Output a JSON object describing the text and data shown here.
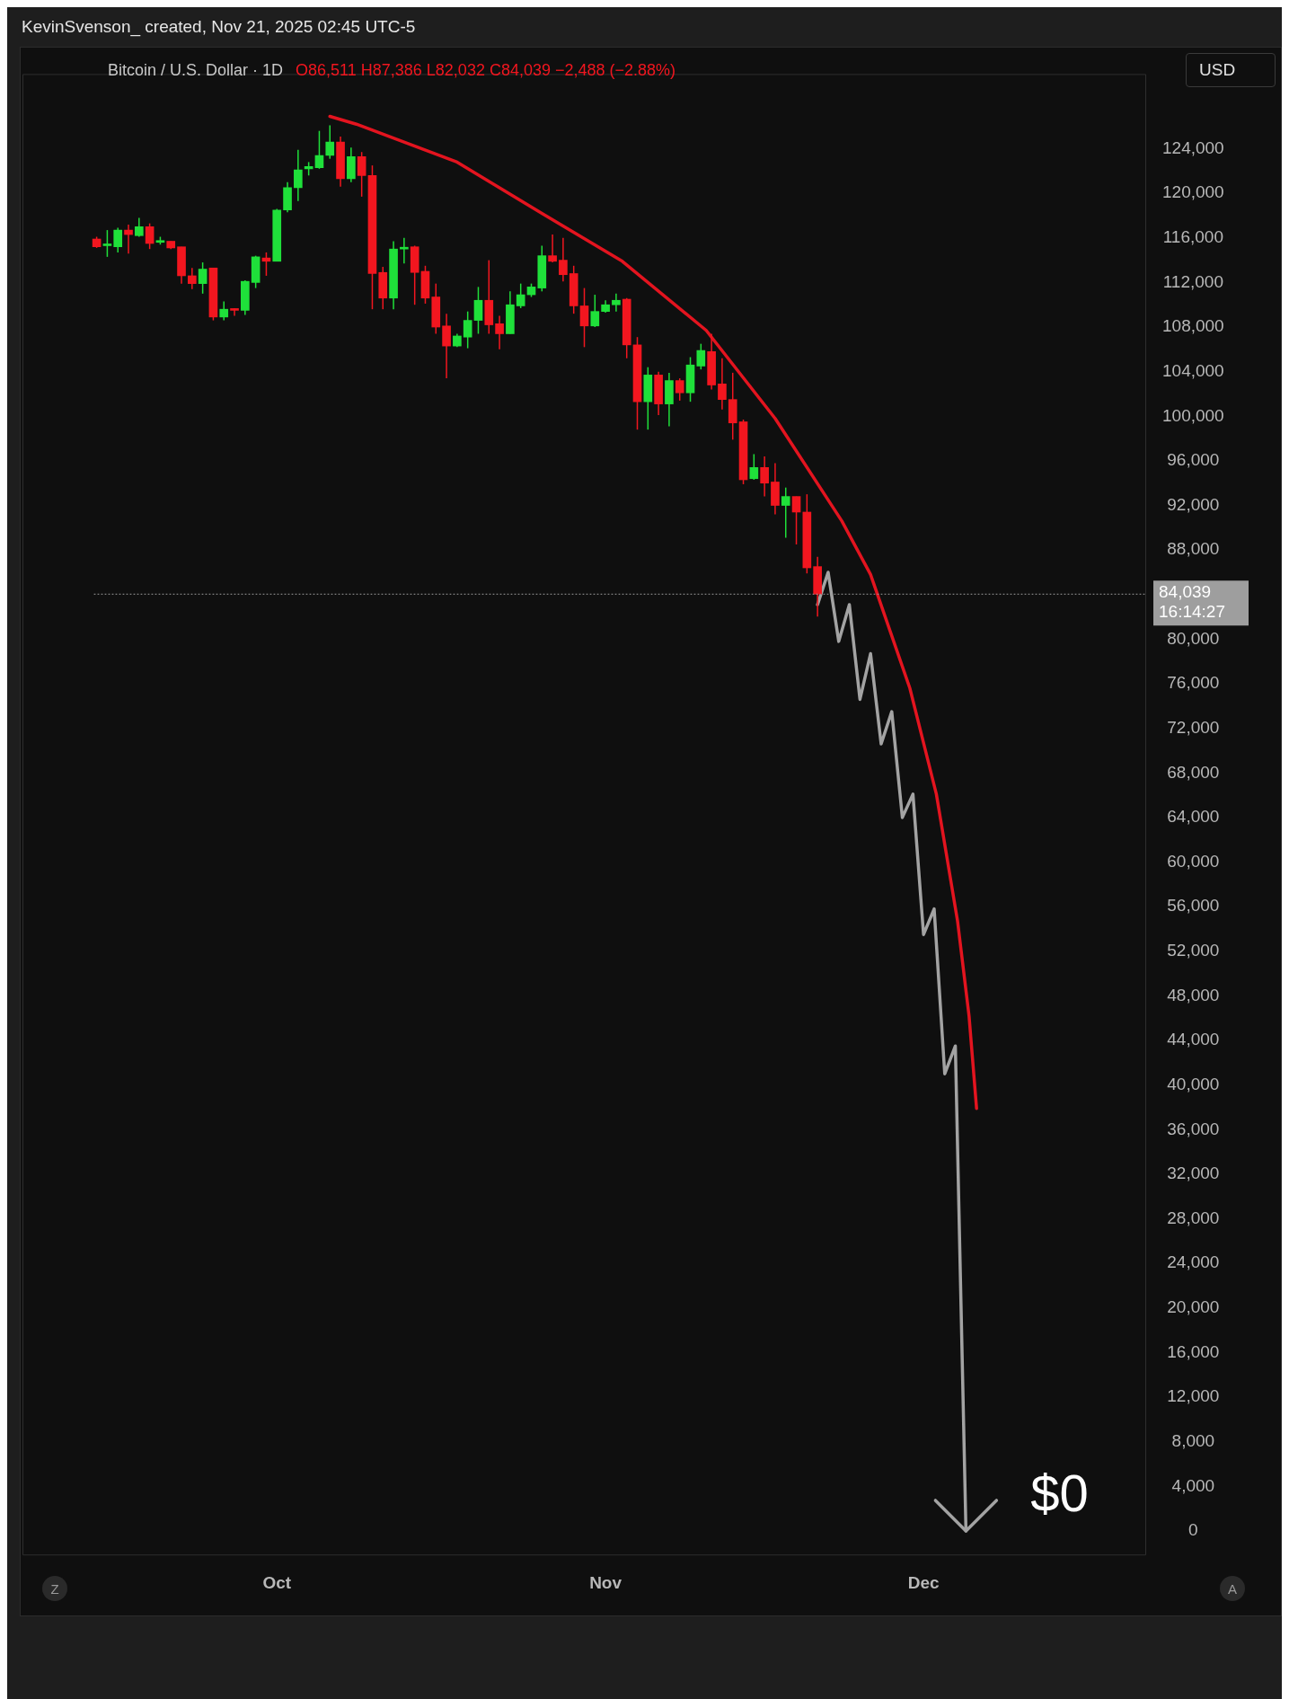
{
  "chart_data": {
    "type": "candlestick",
    "title": "Bitcoin / U.S. Dollar · 1D",
    "subtitle": "O86,511 H87,386 L82,032 C84,039 −2,488 (−2.88%)",
    "annotations": [
      "KevinSvenson_ created, Nov 21, 2025 02:45 UTC-5",
      "USD",
      "Z",
      "A",
      "$0"
    ],
    "x": [
      "2025-09-14",
      "2025-09-15",
      "2025-09-16",
      "2025-09-17",
      "2025-09-18",
      "2025-09-19",
      "2025-09-20",
      "2025-09-21",
      "2025-09-22",
      "2025-09-23",
      "2025-09-24",
      "2025-09-25",
      "2025-09-26",
      "2025-09-27",
      "2025-09-28",
      "2025-09-29",
      "2025-09-30",
      "2025-10-01",
      "2025-10-02",
      "2025-10-03",
      "2025-10-04",
      "2025-10-05",
      "2025-10-06",
      "2025-10-07",
      "2025-10-08",
      "2025-10-09",
      "2025-10-10",
      "2025-10-11",
      "2025-10-12",
      "2025-10-13",
      "2025-10-14",
      "2025-10-15",
      "2025-10-16",
      "2025-10-17",
      "2025-10-18",
      "2025-10-19",
      "2025-10-20",
      "2025-10-21",
      "2025-10-22",
      "2025-10-23",
      "2025-10-24",
      "2025-10-25",
      "2025-10-26",
      "2025-10-27",
      "2025-10-28",
      "2025-10-29",
      "2025-10-30",
      "2025-10-31",
      "2025-11-01",
      "2025-11-02",
      "2025-11-03",
      "2025-11-04",
      "2025-11-05",
      "2025-11-06",
      "2025-11-07",
      "2025-11-08",
      "2025-11-09",
      "2025-11-10",
      "2025-11-11",
      "2025-11-12",
      "2025-11-13",
      "2025-11-14",
      "2025-11-15",
      "2025-11-16",
      "2025-11-17",
      "2025-11-18",
      "2025-11-19",
      "2025-11-20",
      "2025-11-21"
    ],
    "ohlc": [
      [
        115900,
        116100,
        115100,
        115200
      ],
      [
        115300,
        116700,
        114300,
        115400
      ],
      [
        115200,
        116900,
        114700,
        116700
      ],
      [
        116700,
        117200,
        114600,
        116300
      ],
      [
        116200,
        117800,
        116100,
        117000
      ],
      [
        117000,
        117300,
        115000,
        115500
      ],
      [
        115600,
        116100,
        115400,
        115700
      ],
      [
        115700,
        115700,
        115000,
        115100
      ],
      [
        115200,
        115200,
        111900,
        112600
      ],
      [
        112600,
        113300,
        111400,
        111900
      ],
      [
        111900,
        113800,
        111000,
        113200
      ],
      [
        113300,
        113300,
        108600,
        108900
      ],
      [
        108900,
        110300,
        108600,
        109600
      ],
      [
        109600,
        109700,
        109000,
        109500
      ],
      [
        109500,
        112200,
        109100,
        112100
      ],
      [
        112000,
        114400,
        111500,
        114300
      ],
      [
        114200,
        114700,
        112600,
        113900
      ],
      [
        113900,
        118600,
        113900,
        118500
      ],
      [
        118500,
        121000,
        118300,
        120500
      ],
      [
        120500,
        123900,
        119300,
        122100
      ],
      [
        122200,
        122800,
        121600,
        122400
      ],
      [
        122300,
        125600,
        122200,
        123400
      ],
      [
        123400,
        126100,
        123100,
        124600
      ],
      [
        124600,
        125100,
        120600,
        121300
      ],
      [
        121300,
        124100,
        121000,
        123300
      ],
      [
        123300,
        123700,
        119700,
        121600
      ],
      [
        121600,
        122500,
        109600,
        112800
      ],
      [
        112900,
        113400,
        109600,
        110600
      ],
      [
        110600,
        115700,
        109600,
        115000
      ],
      [
        115000,
        116000,
        113700,
        115100
      ],
      [
        115200,
        115300,
        110000,
        112900
      ],
      [
        113000,
        113500,
        110100,
        110600
      ],
      [
        110700,
        111900,
        107400,
        108000
      ],
      [
        108100,
        109200,
        103400,
        106300
      ],
      [
        106300,
        107400,
        106200,
        107200
      ],
      [
        107100,
        109400,
        106100,
        108600
      ],
      [
        108600,
        111600,
        107400,
        110400
      ],
      [
        110400,
        114000,
        107400,
        108200
      ],
      [
        108300,
        109000,
        106000,
        107400
      ],
      [
        107400,
        111200,
        107400,
        110000
      ],
      [
        109900,
        111900,
        109700,
        110900
      ],
      [
        110900,
        111900,
        110700,
        111600
      ],
      [
        111500,
        115300,
        111200,
        114400
      ],
      [
        114400,
        116300,
        113800,
        113900
      ],
      [
        114000,
        116000,
        112100,
        112700
      ],
      [
        112800,
        113500,
        109200,
        109900
      ],
      [
        109900,
        111500,
        106200,
        108100
      ],
      [
        108100,
        110900,
        108000,
        109400
      ],
      [
        109400,
        110400,
        109300,
        110000
      ],
      [
        110000,
        111000,
        109400,
        110400
      ],
      [
        110500,
        110600,
        105200,
        106400
      ],
      [
        106400,
        107100,
        98800,
        101300
      ],
      [
        101300,
        104400,
        98800,
        103700
      ],
      [
        103700,
        104000,
        100100,
        101100
      ],
      [
        101100,
        103900,
        99100,
        103200
      ],
      [
        103200,
        103400,
        101400,
        102100
      ],
      [
        102100,
        105300,
        101300,
        104600
      ],
      [
        104500,
        106500,
        104200,
        105900
      ],
      [
        105800,
        107400,
        102400,
        102800
      ],
      [
        102900,
        105200,
        100600,
        101500
      ],
      [
        101500,
        103900,
        97900,
        99400
      ],
      [
        99500,
        99700,
        93900,
        94300
      ],
      [
        94400,
        96600,
        94300,
        95400
      ],
      [
        95400,
        96400,
        92800,
        94000
      ],
      [
        94100,
        95800,
        91200,
        92000
      ],
      [
        92000,
        93600,
        89100,
        92800
      ],
      [
        92800,
        92800,
        88500,
        91400
      ],
      [
        91400,
        93000,
        85900,
        86400
      ],
      [
        86511,
        87386,
        82032,
        84039
      ]
    ],
    "series": [
      {
        "type": "line",
        "color": "#e3141f",
        "x": [
          "2025-10-06",
          "2025-10-08T12:00",
          "2025-10-18",
          "2025-10-26",
          "2025-11-02T14:00",
          "2025-11-10T12:00",
          "2025-11-17",
          "2025-11-23T07:00",
          "2025-11-26",
          "2025-11-29T17:00",
          "2025-12-02T05:00",
          "2025-12-04T05:00",
          "2025-12-05T07:00",
          "2025-12-06"
        ],
        "values": [
          126900,
          126200,
          122800,
          118200,
          113900,
          107700,
          99800,
          90600,
          85800,
          75600,
          66100,
          54700,
          46200,
          37900
        ]
      },
      {
        "type": "line",
        "color": "#a3a3a3",
        "x": [
          "2025-11-21",
          "2025-11-22",
          "2025-11-23",
          "2025-11-24",
          "2025-11-25",
          "2025-11-26",
          "2025-11-27",
          "2025-11-28",
          "2025-11-29",
          "2025-11-30",
          "2025-12-01",
          "2025-12-02",
          "2025-12-03",
          "2025-12-04",
          "2025-12-05"
        ],
        "values": [
          83100,
          86000,
          79800,
          83100,
          74600,
          78700,
          70600,
          73500,
          64000,
          66100,
          53500,
          55800,
          41000,
          43500,
          0
        ]
      }
    ],
    "ref_lines": [
      {
        "axis": "y",
        "value": 84039,
        "label": "84,039\n16:14:27",
        "color": "#9e9e9e",
        "line_style": "dotted"
      }
    ],
    "xlim": [
      "2025-09-07",
      "2025-12-22"
    ],
    "xticks": [
      {
        "value": "2025-10-01",
        "label": "Oct"
      },
      {
        "value": "2025-11-01",
        "label": "Nov"
      },
      {
        "value": "2025-12-01",
        "label": "Dec"
      }
    ],
    "ylim": [
      -2200,
      130700
    ],
    "yticks": [
      {
        "value": 0,
        "label": "0"
      },
      {
        "value": 4000,
        "label": "4,000"
      },
      {
        "value": 8000,
        "label": "8,000"
      },
      {
        "value": 12000,
        "label": "12,000"
      },
      {
        "value": 16000,
        "label": "16,000"
      },
      {
        "value": 20000,
        "label": "20,000"
      },
      {
        "value": 24000,
        "label": "24,000"
      },
      {
        "value": 28000,
        "label": "28,000"
      },
      {
        "value": 32000,
        "label": "32,000"
      },
      {
        "value": 36000,
        "label": "36,000"
      },
      {
        "value": 40000,
        "label": "40,000"
      },
      {
        "value": 44000,
        "label": "44,000"
      },
      {
        "value": 48000,
        "label": "48,000"
      },
      {
        "value": 52000,
        "label": "52,000"
      },
      {
        "value": 56000,
        "label": "56,000"
      },
      {
        "value": 60000,
        "label": "60,000"
      },
      {
        "value": 64000,
        "label": "64,000"
      },
      {
        "value": 68000,
        "label": "68,000"
      },
      {
        "value": 72000,
        "label": "72,000"
      },
      {
        "value": 76000,
        "label": "76,000"
      },
      {
        "value": 80000,
        "label": "80,000"
      },
      {
        "value": 88000,
        "label": "88,000"
      },
      {
        "value": 92000,
        "label": "92,000"
      },
      {
        "value": 96000,
        "label": "96,000"
      },
      {
        "value": 100000,
        "label": "100,000"
      },
      {
        "value": 104000,
        "label": "104,000"
      },
      {
        "value": 108000,
        "label": "108,000"
      },
      {
        "value": 112000,
        "label": "112,000"
      },
      {
        "value": 116000,
        "label": "116,000"
      },
      {
        "value": 120000,
        "label": "120,000"
      },
      {
        "value": 124000,
        "label": "124,000"
      }
    ]
  }
}
